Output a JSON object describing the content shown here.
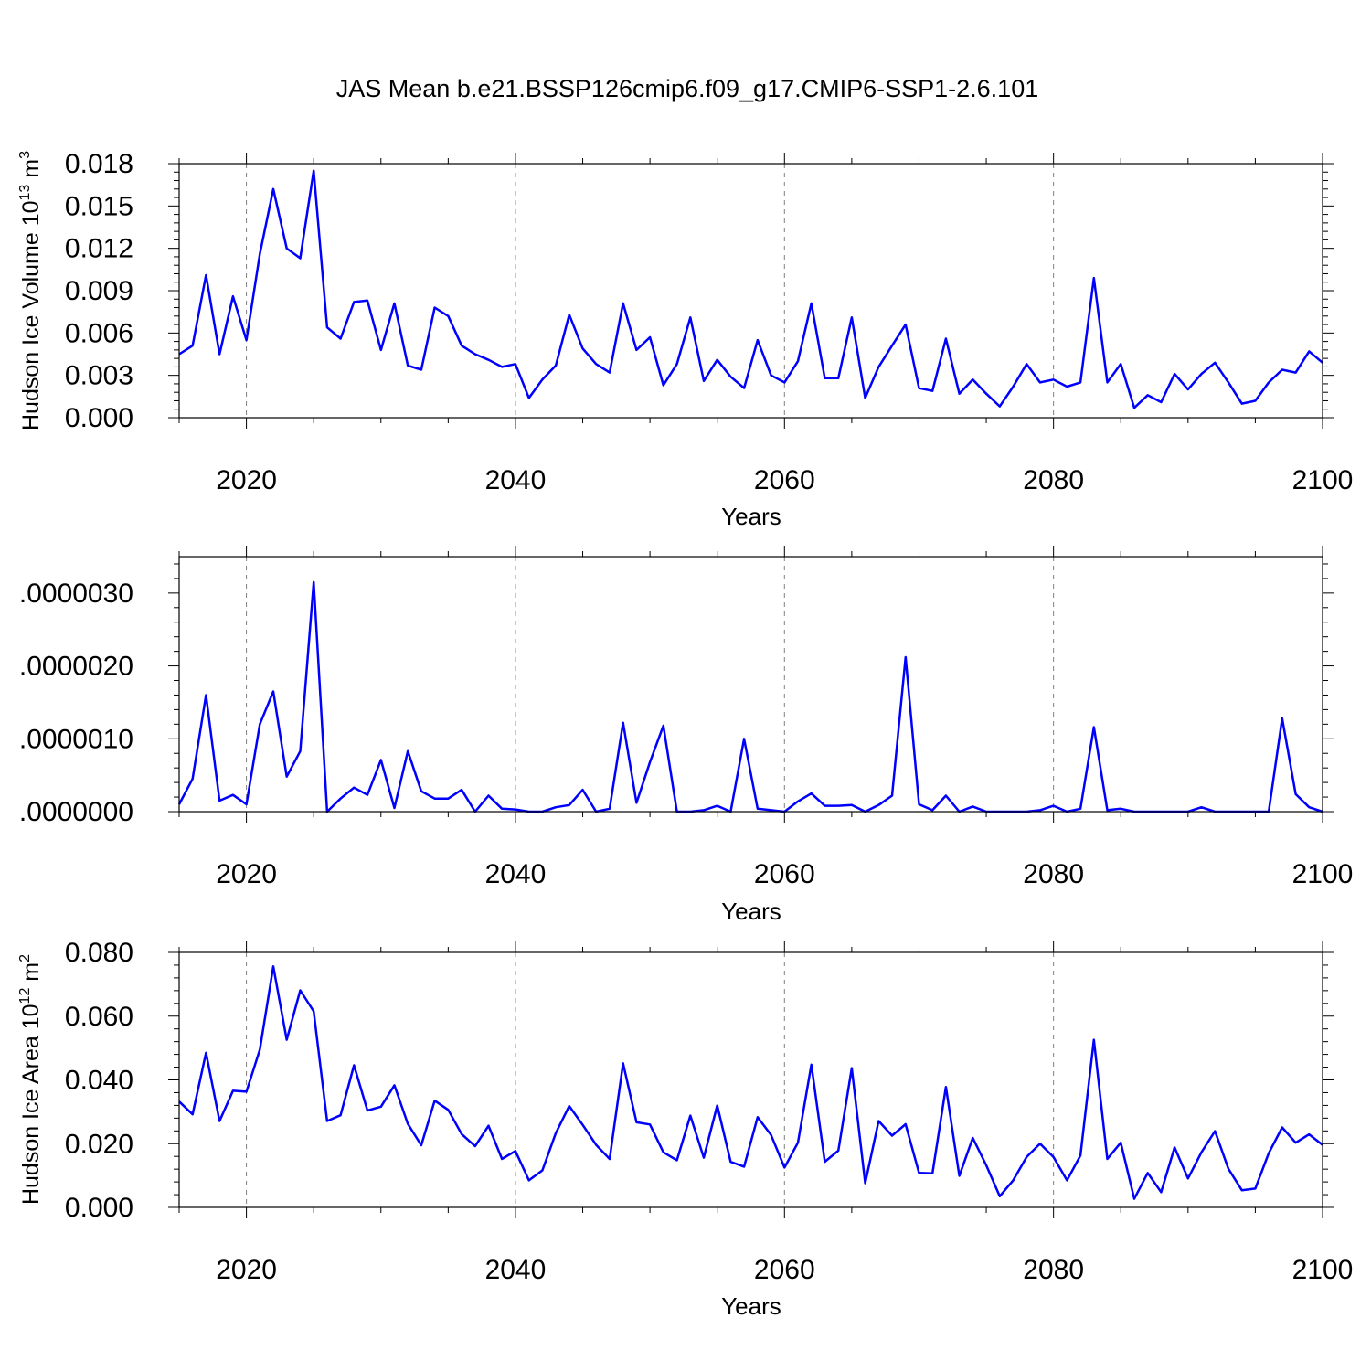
{
  "title": "JAS Mean b.e21.BSSP126cmip6.f09_g17.CMIP6-SSP1-2.6.101",
  "colors": {
    "line": "#0000ff",
    "axis": "#000000",
    "grid": "#808080"
  },
  "chart_data": [
    {
      "type": "line",
      "xlabel": "Years",
      "ylabel_main": "Hudson Ice Volume 10",
      "ylabel_exp1": "13",
      "ylabel_unit": " m",
      "ylabel_exp2": "3",
      "xlim": [
        2015,
        2100
      ],
      "ylim": [
        0,
        0.018
      ],
      "xticks": [
        "2020",
        "2040",
        "2060",
        "2080",
        "2100"
      ],
      "yticks": [
        "0.000",
        "0.003",
        "0.006",
        "0.009",
        "0.012",
        "0.015",
        "0.018"
      ],
      "ytick_values": [
        0,
        0.003,
        0.006,
        0.009,
        0.012,
        0.015,
        0.018
      ],
      "grid": "vertical dashed at major x ticks",
      "x": [
        2015,
        2016,
        2017,
        2018,
        2019,
        2020,
        2021,
        2022,
        2023,
        2024,
        2025,
        2026,
        2027,
        2028,
        2029,
        2030,
        2031,
        2032,
        2033,
        2034,
        2035,
        2036,
        2037,
        2038,
        2039,
        2040,
        2041,
        2042,
        2043,
        2044,
        2045,
        2046,
        2047,
        2048,
        2049,
        2050,
        2051,
        2052,
        2053,
        2054,
        2055,
        2056,
        2057,
        2058,
        2059,
        2060,
        2061,
        2062,
        2063,
        2064,
        2065,
        2066,
        2067,
        2068,
        2069,
        2070,
        2071,
        2072,
        2073,
        2074,
        2075,
        2076,
        2077,
        2078,
        2079,
        2080,
        2081,
        2082,
        2083,
        2084,
        2085,
        2086,
        2087,
        2088,
        2089,
        2090,
        2091,
        2092,
        2093,
        2094,
        2095,
        2096,
        2097,
        2098,
        2099,
        2100
      ],
      "values": [
        0.0045,
        0.0051,
        0.0101,
        0.0045,
        0.0086,
        0.0055,
        0.0116,
        0.0162,
        0.012,
        0.0113,
        0.0175,
        0.0064,
        0.0056,
        0.0082,
        0.0083,
        0.0048,
        0.0081,
        0.0037,
        0.0034,
        0.0078,
        0.0072,
        0.0051,
        0.0045,
        0.0041,
        0.0036,
        0.0038,
        0.0014,
        0.0027,
        0.0037,
        0.0073,
        0.0049,
        0.0038,
        0.0032,
        0.0081,
        0.0048,
        0.0057,
        0.0023,
        0.0038,
        0.0071,
        0.0026,
        0.0041,
        0.0029,
        0.0021,
        0.0055,
        0.003,
        0.0025,
        0.004,
        0.0081,
        0.0028,
        0.0028,
        0.0071,
        0.0014,
        0.0036,
        0.0051,
        0.0066,
        0.0021,
        0.0019,
        0.0056,
        0.0017,
        0.0027,
        0.0017,
        0.0008,
        0.0022,
        0.0038,
        0.0025,
        0.0027,
        0.0022,
        0.0025,
        0.0099,
        0.0025,
        0.0038,
        0.0007,
        0.0016,
        0.0011,
        0.0031,
        0.002,
        0.0031,
        0.0039,
        0.0025,
        0.001,
        0.0012,
        0.0025,
        0.0034,
        0.0032,
        0.0047,
        0.0039
      ]
    },
    {
      "type": "line",
      "xlabel": "Years",
      "xlim": [
        2015,
        2100
      ],
      "ylim": [
        0,
        3.5e-06
      ],
      "xticks": [
        "2020",
        "2040",
        "2060",
        "2080",
        "2100"
      ],
      "yticks": [
        ".0000000",
        ".0000010",
        ".0000020",
        ".0000030"
      ],
      "ytick_values": [
        0,
        1e-06,
        2e-06,
        3e-06
      ],
      "grid": "vertical dashed at major x ticks",
      "x": [
        2015,
        2016,
        2017,
        2018,
        2019,
        2020,
        2021,
        2022,
        2023,
        2024,
        2025,
        2026,
        2027,
        2028,
        2029,
        2030,
        2031,
        2032,
        2033,
        2034,
        2035,
        2036,
        2037,
        2038,
        2039,
        2040,
        2041,
        2042,
        2043,
        2044,
        2045,
        2046,
        2047,
        2048,
        2049,
        2050,
        2051,
        2052,
        2053,
        2054,
        2055,
        2056,
        2057,
        2058,
        2059,
        2060,
        2061,
        2062,
        2063,
        2064,
        2065,
        2066,
        2067,
        2068,
        2069,
        2070,
        2071,
        2072,
        2073,
        2074,
        2075,
        2076,
        2077,
        2078,
        2079,
        2080,
        2081,
        2082,
        2083,
        2084,
        2085,
        2086,
        2087,
        2088,
        2089,
        2090,
        2091,
        2092,
        2093,
        2094,
        2095,
        2096,
        2097,
        2098,
        2099,
        2100
      ],
      "values": [
        1e-07,
        4.5e-07,
        1.6e-06,
        1.5e-07,
        2.3e-07,
        1e-07,
        1.2e-06,
        1.65e-06,
        4.8e-07,
        8.3e-07,
        3.15e-06,
        0.0,
        1.8e-07,
        3.3e-07,
        2.3e-07,
        7.1e-07,
        5e-08,
        8.3e-07,
        2.8e-07,
        1.8e-07,
        1.8e-07,
        3e-07,
        0.0,
        2.2e-07,
        4e-08,
        3e-08,
        0.0,
        0.0,
        6e-08,
        9e-08,
        3e-07,
        0.0,
        4e-08,
        1.22e-06,
        1.2e-07,
        6.8e-07,
        1.18e-06,
        0.0,
        0.0,
        2e-08,
        8e-08,
        0.0,
        1e-06,
        4e-08,
        2e-08,
        0.0,
        1.4e-07,
        2.5e-07,
        8e-08,
        8e-08,
        9e-08,
        0.0,
        9e-08,
        2.2e-07,
        2.12e-06,
        1e-07,
        2e-08,
        2.2e-07,
        0.0,
        7e-08,
        0.0,
        0.0,
        0.0,
        0.0,
        2e-08,
        8e-08,
        0.0,
        4e-08,
        1.16e-06,
        2e-08,
        4e-08,
        0.0,
        0.0,
        0.0,
        0.0,
        0.0,
        6e-08,
        0.0,
        0.0,
        0.0,
        0.0,
        0.0,
        1.28e-06,
        2.4e-07,
        6e-08,
        0.0
      ]
    },
    {
      "type": "line",
      "xlabel": "Years",
      "ylabel_main": "Hudson Ice Area 10",
      "ylabel_exp1": "12",
      "ylabel_unit": " m",
      "ylabel_exp2": "2",
      "xlim": [
        2015,
        2100
      ],
      "ylim": [
        0,
        0.08
      ],
      "xticks": [
        "2020",
        "2040",
        "2060",
        "2080",
        "2100"
      ],
      "yticks": [
        "0.000",
        "0.020",
        "0.040",
        "0.060",
        "0.080"
      ],
      "ytick_values": [
        0,
        0.02,
        0.04,
        0.06,
        0.08
      ],
      "grid": "vertical dashed at major x ticks",
      "x": [
        2015,
        2016,
        2017,
        2018,
        2019,
        2020,
        2021,
        2022,
        2023,
        2024,
        2025,
        2026,
        2027,
        2028,
        2029,
        2030,
        2031,
        2032,
        2033,
        2034,
        2035,
        2036,
        2037,
        2038,
        2039,
        2040,
        2041,
        2042,
        2043,
        2044,
        2045,
        2046,
        2047,
        2048,
        2049,
        2050,
        2051,
        2052,
        2053,
        2054,
        2055,
        2056,
        2057,
        2058,
        2059,
        2060,
        2061,
        2062,
        2063,
        2064,
        2065,
        2066,
        2067,
        2068,
        2069,
        2070,
        2071,
        2072,
        2073,
        2074,
        2075,
        2076,
        2077,
        2078,
        2079,
        2080,
        2081,
        2082,
        2083,
        2084,
        2085,
        2086,
        2087,
        2088,
        2089,
        2090,
        2091,
        2092,
        2093,
        2094,
        2095,
        2096,
        2097,
        2098,
        2099,
        2100
      ],
      "values": [
        0.0332,
        0.0292,
        0.0485,
        0.0271,
        0.0366,
        0.0363,
        0.0495,
        0.0756,
        0.0526,
        0.0681,
        0.0615,
        0.0271,
        0.0289,
        0.0446,
        0.0304,
        0.0316,
        0.0383,
        0.0262,
        0.0195,
        0.0335,
        0.0306,
        0.023,
        0.0192,
        0.0256,
        0.0152,
        0.0177,
        0.0085,
        0.0116,
        0.0233,
        0.0318,
        0.0259,
        0.0196,
        0.0152,
        0.0452,
        0.0267,
        0.026,
        0.0173,
        0.0148,
        0.0288,
        0.0156,
        0.032,
        0.0143,
        0.0128,
        0.0283,
        0.0227,
        0.0125,
        0.0203,
        0.0448,
        0.0143,
        0.0178,
        0.0437,
        0.0076,
        0.0271,
        0.0225,
        0.0261,
        0.0108,
        0.0107,
        0.0378,
        0.0099,
        0.0218,
        0.0132,
        0.0035,
        0.0085,
        0.0158,
        0.02,
        0.0158,
        0.0085,
        0.0163,
        0.0526,
        0.0152,
        0.0203,
        0.0027,
        0.0108,
        0.0048,
        0.0188,
        0.0091,
        0.0173,
        0.0239,
        0.0121,
        0.0054,
        0.0059,
        0.017,
        0.0251,
        0.0203,
        0.0229,
        0.0196
      ]
    }
  ]
}
